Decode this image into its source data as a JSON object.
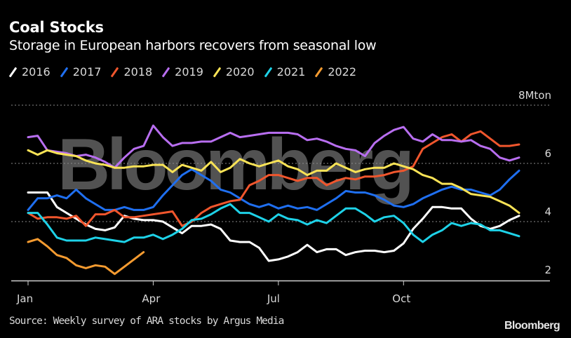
{
  "header": {
    "title": "Coal Stocks",
    "subtitle": "Storage in European harbors recovers from seasonal low"
  },
  "footer": {
    "source": "Source: Weekly survey of ARA stocks by Argus Media",
    "brand": "Bloomberg"
  },
  "watermark": "Bloomberg",
  "chart_data": {
    "type": "line",
    "title": "Coal Stocks",
    "subtitle": "Storage in European harbors recovers from seasonal low",
    "xlabel": "",
    "ylabel": "",
    "y_unit_label": "Mton",
    "ylim": [
      2,
      8
    ],
    "yticks": [
      2,
      4,
      6,
      8
    ],
    "ytick_labels": [
      "2",
      "4",
      "6",
      "8Mton"
    ],
    "y_axis_position": "right",
    "grid": "horizontal-dotted",
    "x_unit": "week of year",
    "xlim": [
      1,
      52
    ],
    "xticks": [
      1,
      14,
      27,
      40
    ],
    "xtick_labels": [
      "Jan",
      "Apr",
      "Jul",
      "Oct"
    ],
    "legend_placement": "top-left",
    "series": [
      {
        "name": "2016",
        "color": "#ffffff",
        "values": [
          5.0,
          5.0,
          5.0,
          4.5,
          4.3,
          4.1,
          3.9,
          3.75,
          3.7,
          3.8,
          4.2,
          4.1,
          4.05,
          4.05,
          4.0,
          3.8,
          3.6,
          3.85,
          3.85,
          3.9,
          3.75,
          3.35,
          3.3,
          3.3,
          3.1,
          2.65,
          2.7,
          2.8,
          2.95,
          3.2,
          2.95,
          3.05,
          3.05,
          2.85,
          2.95,
          3.0,
          3.0,
          2.95,
          3.0,
          3.25,
          3.75,
          4.1,
          4.5,
          4.5,
          4.45,
          4.45,
          4.1,
          3.85,
          3.75,
          3.85,
          4.05,
          4.2
        ]
      },
      {
        "name": "2017",
        "color": "#1f6ff0",
        "values": [
          4.4,
          4.8,
          4.8,
          4.9,
          4.8,
          5.1,
          4.8,
          4.6,
          4.4,
          4.4,
          4.5,
          4.4,
          4.4,
          4.5,
          4.9,
          5.25,
          5.6,
          5.8,
          5.6,
          5.4,
          5.1,
          5.0,
          4.8,
          4.6,
          4.5,
          4.6,
          4.45,
          4.55,
          4.45,
          4.5,
          4.4,
          4.6,
          4.8,
          5.05,
          5.0,
          5.0,
          4.9,
          4.75,
          4.55,
          4.5,
          4.6,
          4.8,
          4.95,
          5.1,
          5.2,
          5.1,
          5.1,
          5.0,
          4.9,
          5.1,
          5.45,
          5.75
        ]
      },
      {
        "name": "2018",
        "color": "#f0562d",
        "values": [
          4.3,
          4.1,
          4.15,
          4.15,
          4.1,
          4.2,
          3.85,
          4.25,
          4.25,
          4.4,
          4.15,
          4.15,
          4.2,
          4.25,
          4.3,
          4.35,
          3.85,
          4.0,
          4.3,
          4.5,
          4.6,
          4.7,
          4.75,
          5.25,
          5.4,
          5.6,
          5.6,
          5.5,
          5.4,
          5.5,
          5.5,
          5.25,
          5.4,
          5.5,
          5.45,
          5.55,
          5.55,
          5.6,
          5.7,
          5.75,
          5.9,
          6.5,
          6.7,
          6.9,
          7.0,
          6.75,
          7.0,
          7.1,
          6.85,
          6.6,
          6.6,
          6.65
        ]
      },
      {
        "name": "2019",
        "color": "#b86ef0",
        "values": [
          6.9,
          6.95,
          6.45,
          6.4,
          6.35,
          6.25,
          6.3,
          6.2,
          6.05,
          5.85,
          6.2,
          6.5,
          6.6,
          7.3,
          6.9,
          6.6,
          6.7,
          6.7,
          6.75,
          6.75,
          6.9,
          7.05,
          6.9,
          6.95,
          7.0,
          7.05,
          7.05,
          7.05,
          7.0,
          6.8,
          6.85,
          6.75,
          6.6,
          6.5,
          6.45,
          6.25,
          6.7,
          6.95,
          7.15,
          7.25,
          6.85,
          6.75,
          7.0,
          6.8,
          6.8,
          6.75,
          6.8,
          6.6,
          6.5,
          6.2,
          6.1,
          6.2
        ]
      },
      {
        "name": "2020",
        "color": "#f9e356",
        "values": [
          6.45,
          6.3,
          6.45,
          6.35,
          6.3,
          6.25,
          6.1,
          6.0,
          5.95,
          5.85,
          5.85,
          5.9,
          5.9,
          5.95,
          5.95,
          5.7,
          5.95,
          5.85,
          5.75,
          6.05,
          5.7,
          5.85,
          6.15,
          6.0,
          5.9,
          6.0,
          6.1,
          5.9,
          5.8,
          5.6,
          5.75,
          5.75,
          6.0,
          5.85,
          5.7,
          5.8,
          5.85,
          5.85,
          6.0,
          5.9,
          5.8,
          5.6,
          5.5,
          5.3,
          5.3,
          5.15,
          4.95,
          4.9,
          4.85,
          4.7,
          4.55,
          4.3
        ]
      },
      {
        "name": "2021",
        "color": "#1ed2e8",
        "values": [
          4.3,
          4.3,
          3.9,
          3.45,
          3.35,
          3.35,
          3.35,
          3.45,
          3.4,
          3.35,
          3.3,
          3.45,
          3.45,
          3.55,
          3.4,
          3.55,
          3.75,
          4.05,
          4.1,
          4.25,
          4.45,
          4.6,
          4.3,
          4.3,
          4.15,
          4.0,
          4.25,
          4.1,
          4.05,
          3.9,
          4.05,
          3.95,
          4.2,
          4.45,
          4.45,
          4.25,
          4.0,
          4.15,
          4.2,
          3.95,
          3.55,
          3.3,
          3.55,
          3.7,
          3.95,
          3.85,
          3.95,
          3.9,
          3.7,
          3.7,
          3.6,
          3.5
        ]
      },
      {
        "name": "2022",
        "color": "#f59b30",
        "values": [
          3.3,
          3.4,
          3.15,
          2.85,
          2.75,
          2.5,
          2.4,
          2.5,
          2.45,
          2.2,
          2.45,
          2.7,
          2.95
        ]
      }
    ]
  }
}
